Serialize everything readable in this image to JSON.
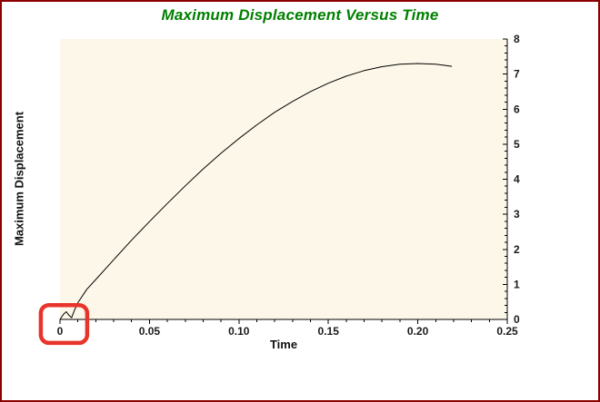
{
  "window": {
    "border_color": "#8b0000",
    "background": "#ffffff"
  },
  "chart_data": {
    "type": "line",
    "title": "Maximum Displacement Versus Time",
    "title_color": "#008000",
    "xlabel": "Time",
    "ylabel": "Maximum Displacement",
    "xlim": [
      0,
      0.25
    ],
    "ylim": [
      0,
      8
    ],
    "x_tick_values": [
      0,
      0.05,
      0.1,
      0.15,
      0.2,
      0.25
    ],
    "x_tick_labels": [
      "0",
      "0.05",
      "0.10",
      "0.15",
      "0.20",
      "0.25"
    ],
    "y_tick_values": [
      0,
      1,
      2,
      3,
      4,
      5,
      6,
      7,
      8
    ],
    "y_tick_labels": [
      "0",
      "1",
      "2",
      "3",
      "4",
      "5",
      "6",
      "7",
      "8"
    ],
    "x_minor_step": 0.01,
    "y_minor_step": 0.2,
    "y_axis_side": "right",
    "grid": false,
    "plot_background": "#fcf7e8",
    "line_color": "#000000",
    "series": [
      {
        "name": "Maximum Displacement",
        "points": [
          [
            0,
            0
          ],
          [
            0.002,
            0.15
          ],
          [
            0.0035,
            0.22
          ],
          [
            0.005,
            0.12
          ],
          [
            0.0065,
            0.05
          ],
          [
            0.008,
            0.25
          ],
          [
            0.01,
            0.48
          ],
          [
            0.015,
            0.86
          ],
          [
            0.02,
            1.14
          ],
          [
            0.03,
            1.7
          ],
          [
            0.04,
            2.26
          ],
          [
            0.05,
            2.79
          ],
          [
            0.06,
            3.31
          ],
          [
            0.07,
            3.81
          ],
          [
            0.08,
            4.29
          ],
          [
            0.09,
            4.74
          ],
          [
            0.1,
            5.16
          ],
          [
            0.11,
            5.55
          ],
          [
            0.12,
            5.91
          ],
          [
            0.13,
            6.22
          ],
          [
            0.14,
            6.5
          ],
          [
            0.15,
            6.74
          ],
          [
            0.16,
            6.94
          ],
          [
            0.17,
            7.1
          ],
          [
            0.18,
            7.21
          ],
          [
            0.19,
            7.28
          ],
          [
            0.2,
            7.3
          ],
          [
            0.21,
            7.28
          ],
          [
            0.215,
            7.25
          ],
          [
            0.219,
            7.22
          ]
        ]
      }
    ],
    "annotation": {
      "shape": "rounded-rect-highlight",
      "color": "#e8352b",
      "x_range": [
        -0.0107,
        0.0152
      ],
      "y_range": [
        -0.67,
        0.41
      ],
      "note": "red rounded box highlighting the small initial bump of the curve at the origin"
    }
  }
}
